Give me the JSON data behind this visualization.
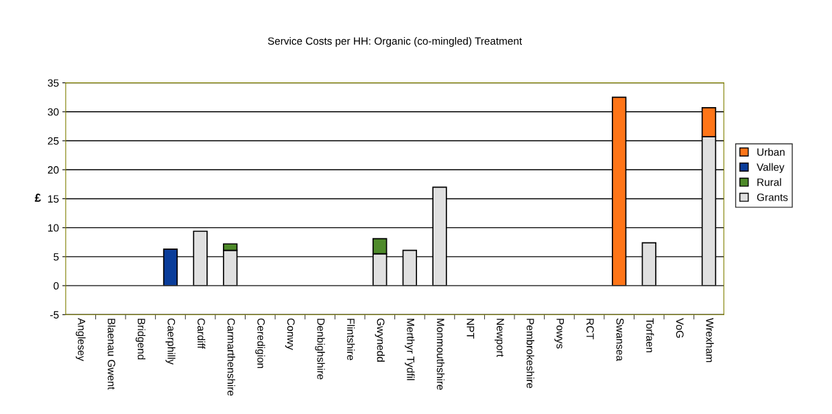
{
  "chart_data": {
    "type": "bar",
    "stacked": true,
    "title": "Service Costs per HH: Organic (co-mingled) Treatment",
    "ylabel": "£",
    "categories": [
      "Anglesey",
      "Blaenau Gwent",
      "Bridgend",
      "Caerphilly",
      "Cardiff",
      "Carmarthenshire",
      "Ceredigion",
      "Conwy",
      "Denbighshire",
      "Flintshire",
      "Gwynedd",
      "Merthyr Tydfil",
      "Monmouthshire",
      "NPT",
      "Newport",
      "Pembrokeshire",
      "Powys",
      "RCT",
      "Swansea",
      "Torfaen",
      "VoG",
      "Wrexham"
    ],
    "series": [
      {
        "name": "Grants",
        "color": "#e0e0e0",
        "values": [
          null,
          null,
          null,
          null,
          9.4,
          6.1,
          null,
          null,
          null,
          null,
          5.5,
          6.1,
          17.0,
          null,
          null,
          null,
          null,
          null,
          null,
          7.4,
          null,
          25.7
        ]
      },
      {
        "name": "Rural",
        "color": "#4e8a2a",
        "values": [
          null,
          null,
          null,
          null,
          null,
          1.1,
          null,
          null,
          null,
          null,
          2.6,
          null,
          null,
          null,
          null,
          null,
          null,
          null,
          null,
          null,
          null,
          null
        ]
      },
      {
        "name": "Valley",
        "color": "#0a3d9a",
        "values": [
          null,
          null,
          null,
          6.3,
          null,
          null,
          null,
          null,
          null,
          null,
          null,
          null,
          null,
          null,
          null,
          null,
          null,
          null,
          null,
          null,
          null,
          null
        ]
      },
      {
        "name": "Urban",
        "color": "#ff7518",
        "values": [
          null,
          null,
          null,
          null,
          null,
          null,
          null,
          null,
          null,
          null,
          null,
          null,
          null,
          null,
          null,
          null,
          null,
          null,
          32.5,
          null,
          null,
          5.0
        ]
      }
    ],
    "ylim": [
      -5,
      35
    ],
    "yticks": [
      -5,
      0,
      5,
      10,
      15,
      20,
      25,
      30,
      35
    ],
    "grid": "y",
    "legend": "right"
  }
}
